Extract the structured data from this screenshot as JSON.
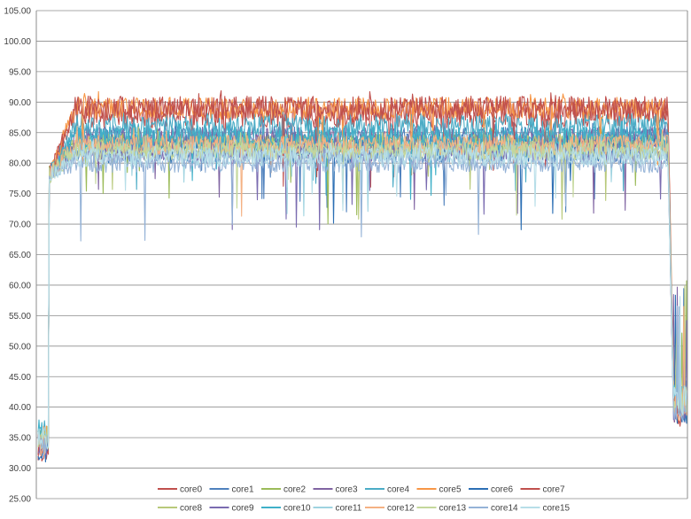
{
  "chart_data": {
    "type": "line",
    "title": "",
    "xlabel": "",
    "ylabel": "",
    "ylim": [
      25,
      105
    ],
    "yticks": [
      "25.00",
      "30.00",
      "35.00",
      "40.00",
      "45.00",
      "50.00",
      "55.00",
      "60.00",
      "65.00",
      "70.00",
      "75.00",
      "80.00",
      "85.00",
      "90.00",
      "95.00",
      "100.00",
      "105.00"
    ],
    "grid": "horizontal",
    "legend": "bottom",
    "x_count": 700,
    "series": [
      {
        "name": "core0",
        "color": "#C0504D",
        "start": 33,
        "plateau": 88,
        "end": 39,
        "noise": 2.2
      },
      {
        "name": "core1",
        "color": "#4F81BD",
        "start": 34,
        "plateau": 84,
        "end": 40,
        "noise": 2.0
      },
      {
        "name": "core2",
        "color": "#9BBB59",
        "start": 35,
        "plateau": 83,
        "end": 41,
        "noise": 1.8
      },
      {
        "name": "core3",
        "color": "#8064A2",
        "start": 34,
        "plateau": 84,
        "end": 40,
        "noise": 2.0
      },
      {
        "name": "core4",
        "color": "#4BACC6",
        "start": 36,
        "plateau": 86,
        "end": 42,
        "noise": 2.2
      },
      {
        "name": "core5",
        "color": "#F79646",
        "start": 35,
        "plateau": 89,
        "end": 43,
        "noise": 1.8
      },
      {
        "name": "core6",
        "color": "#2C6FB4",
        "start": 33,
        "plateau": 82,
        "end": 39,
        "noise": 2.0
      },
      {
        "name": "core7",
        "color": "#C0504D",
        "start": 34,
        "plateau": 89,
        "end": 40,
        "noise": 2.0
      },
      {
        "name": "core8",
        "color": "#B8C97A",
        "start": 35,
        "plateau": 83,
        "end": 41,
        "noise": 1.8
      },
      {
        "name": "core9",
        "color": "#7A6BB0",
        "start": 34,
        "plateau": 82,
        "end": 40,
        "noise": 1.8
      },
      {
        "name": "core10",
        "color": "#3FB0C8",
        "start": 36,
        "plateau": 84,
        "end": 42,
        "noise": 2.0
      },
      {
        "name": "core11",
        "color": "#9FD3E0",
        "start": 35,
        "plateau": 82,
        "end": 41,
        "noise": 1.6
      },
      {
        "name": "core12",
        "color": "#F4B183",
        "start": 34,
        "plateau": 83,
        "end": 40,
        "noise": 1.6
      },
      {
        "name": "core13",
        "color": "#C4D79B",
        "start": 35,
        "plateau": 82,
        "end": 41,
        "noise": 1.6
      },
      {
        "name": "core14",
        "color": "#95B3D7",
        "start": 34,
        "plateau": 80,
        "end": 40,
        "noise": 1.6
      },
      {
        "name": "core15",
        "color": "#B7DEE8",
        "start": 35,
        "plateau": 81,
        "end": 41,
        "noise": 1.6
      }
    ]
  }
}
